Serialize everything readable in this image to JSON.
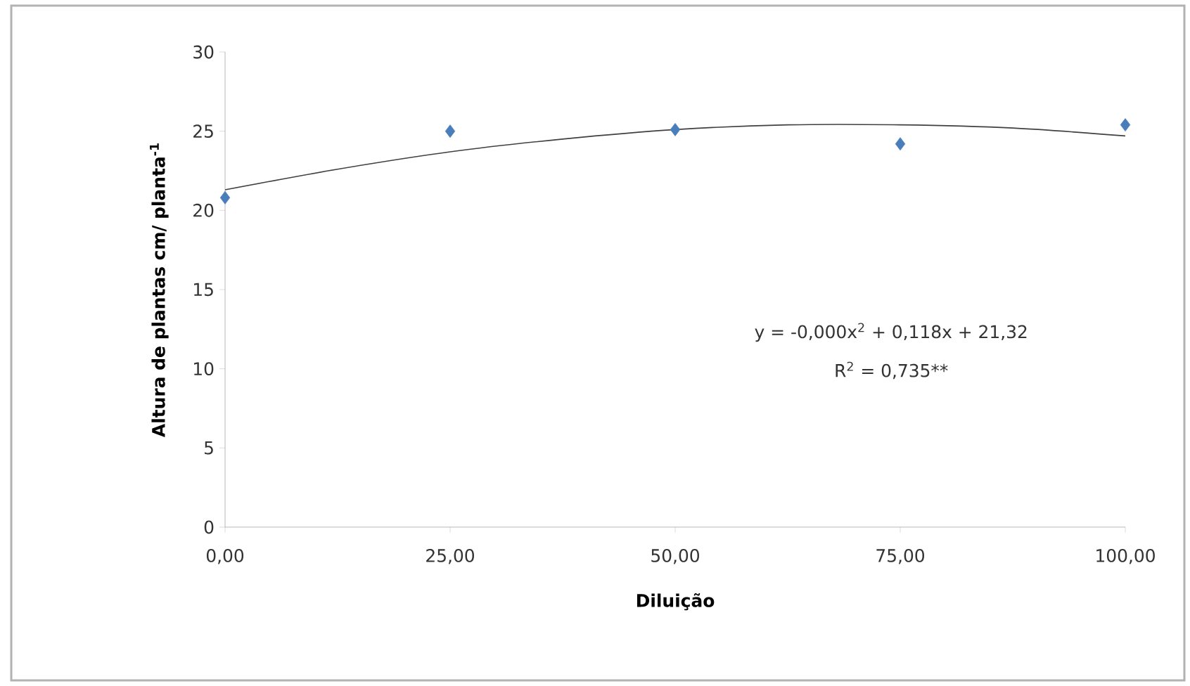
{
  "chart_data": {
    "type": "scatter",
    "xlabel": "Diluição",
    "ylabel": "Altura de plantas cm/ planta$^{-1}$",
    "x": [
      0,
      25,
      50,
      75,
      100
    ],
    "series": [
      {
        "color": "#4a7ebb",
        "marker": "diamond",
        "values": [
          20.8,
          25.0,
          25.1,
          24.2,
          25.4
        ]
      },
      {
        "type": "line",
        "color": "#404040",
        "marker": "none",
        "line_style": "solid",
        "x": [
          0,
          12.5,
          25,
          37.5,
          50,
          62.5,
          75,
          87.5,
          100
        ],
        "values": [
          21.3,
          22.6,
          23.7,
          24.5,
          25.1,
          25.4,
          25.4,
          25.2,
          24.7
        ]
      }
    ],
    "xlim": [
      0,
      100
    ],
    "ylim": [
      0,
      30
    ],
    "xticks": [
      {
        "value": 0,
        "label": "0,00"
      },
      {
        "value": 25,
        "label": "25,00"
      },
      {
        "value": 50,
        "label": "50,00"
      },
      {
        "value": 75,
        "label": "75,00"
      },
      {
        "value": 100,
        "label": "100,00"
      }
    ],
    "yticks": [
      0,
      5,
      10,
      15,
      20,
      25,
      30
    ],
    "grid": false,
    "annotations": [
      "y = -0,000x$^{2}$ + 0,118x + 21,32",
      "R$^{2}$ = 0,735**"
    ]
  }
}
